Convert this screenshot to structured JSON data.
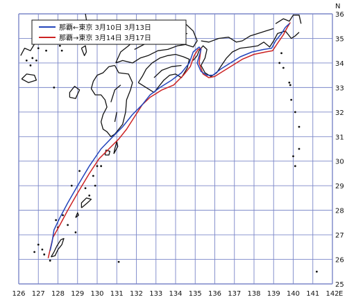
{
  "map": {
    "compass": "N",
    "lon_axis_letter": "E",
    "lon_labels": [
      "126",
      "127",
      "128",
      "129",
      "130",
      "131",
      "132",
      "133",
      "134",
      "135",
      "136",
      "137",
      "138",
      "139",
      "140",
      "141",
      "142"
    ],
    "lat_labels": [
      "25",
      "26",
      "27",
      "28",
      "29",
      "30",
      "31",
      "32",
      "33",
      "34",
      "35",
      "36"
    ],
    "lon_range": [
      126,
      142
    ],
    "lat_range": [
      25,
      36
    ],
    "grid": true,
    "legend": {
      "position": "top-left",
      "entries": [
        {
          "label": "那覇←東京 3月10日 3月13日",
          "color": "#2244bb"
        },
        {
          "label": "那覇→東京 3月14日 3月17日",
          "color": "#cc2222"
        }
      ]
    }
  },
  "colors": {
    "grid": "#7a86c8",
    "land": "#111111",
    "route_blue": "#2244bb",
    "route_red": "#cc2222"
  }
}
